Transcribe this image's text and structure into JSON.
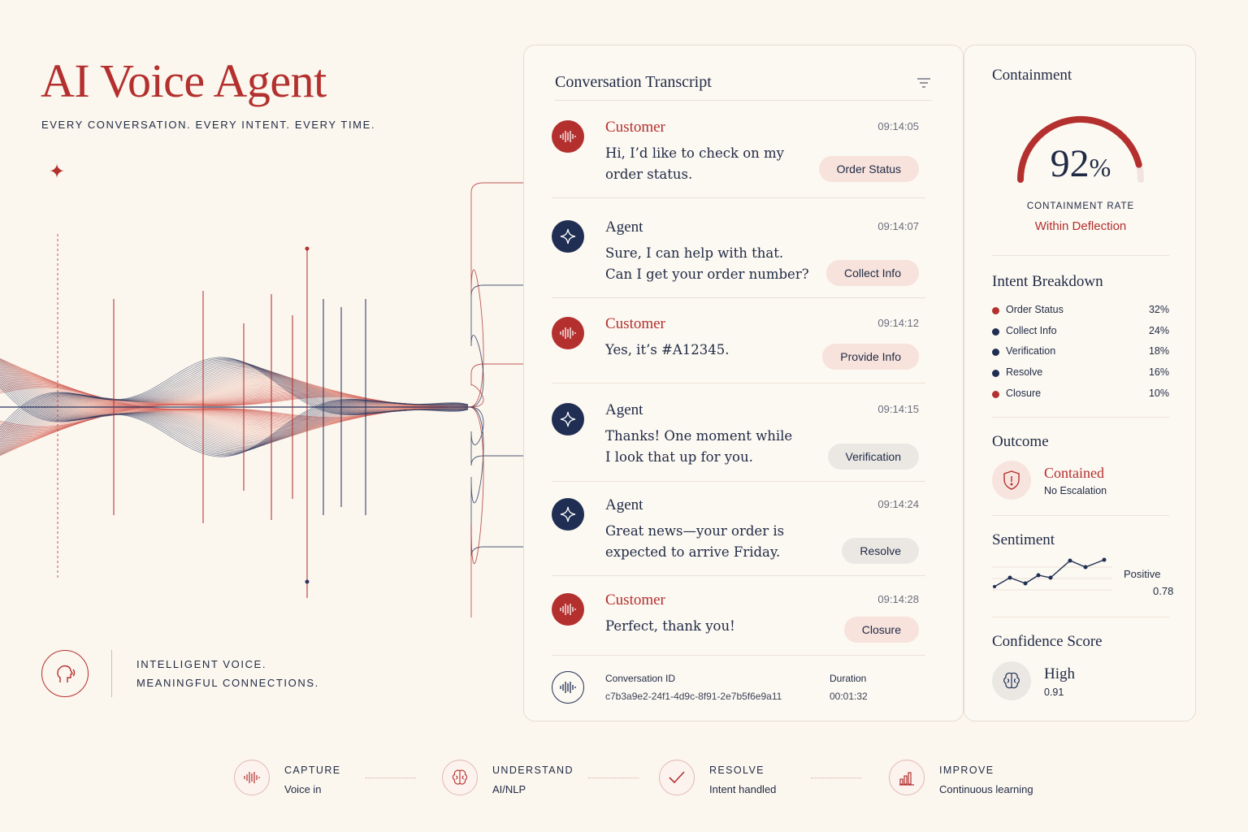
{
  "hero": {
    "title": "AI Voice Agent",
    "tagline": "EVERY CONVERSATION. EVERY INTENT. EVERY TIME.",
    "brand_line1": "INTELLIGENT VOICE.",
    "brand_line2": "MEANINGFUL CONNECTIONS."
  },
  "transcript": {
    "title": "Conversation Transcript",
    "messages": [
      {
        "speaker": "Customer",
        "time": "09:14:05",
        "line1": "Hi, I’d like to check on my",
        "line2": "order status.",
        "tag": "Order Status"
      },
      {
        "speaker": "Agent",
        "time": "09:14:07",
        "line1": "Sure, I can help with that.",
        "line2": "Can I get your order number?",
        "tag": "Collect Info"
      },
      {
        "speaker": "Customer",
        "time": "09:14:12",
        "line1": "Yes, it’s  #A12345.",
        "line2": "",
        "tag": "Provide Info"
      },
      {
        "speaker": "Agent",
        "time": "09:14:15",
        "line1": "Thanks! One moment while",
        "line2": "I look that up for you.",
        "tag": "Verification"
      },
      {
        "speaker": "Agent",
        "time": "09:14:24",
        "line1": "Great news—your order is",
        "line2": "expected to arrive Friday.",
        "tag": "Resolve"
      },
      {
        "speaker": "Customer",
        "time": "09:14:28",
        "line1": "Perfect, thank you!",
        "line2": "",
        "tag": "Closure"
      }
    ],
    "conversation_id_label": "Conversation ID",
    "conversation_id": "c7b3a9e2-24f1-4d9c-8f91-2e7b5f6e9a11",
    "duration_label": "Duration",
    "duration": "00:01:32"
  },
  "panel": {
    "containment_title": "Containment",
    "containment_value": "92",
    "containment_unit": "%",
    "containment_fraction": 0.92,
    "containment_caption": "CONTAINMENT RATE",
    "containment_status": "Within Deflection",
    "intent_title": "Intent Breakdown",
    "intents": [
      {
        "name": "Order Status",
        "pct": "32%",
        "color": "#b3302e"
      },
      {
        "name": "Collect Info",
        "pct": "24%",
        "color": "#1f2e52"
      },
      {
        "name": "Verification",
        "pct": "18%",
        "color": "#1f2e52"
      },
      {
        "name": "Resolve",
        "pct": "16%",
        "color": "#1f2e52"
      },
      {
        "name": "Closure",
        "pct": "10%",
        "color": "#b3302e"
      }
    ],
    "outcome_title": "Outcome",
    "outcome_value": "Contained",
    "outcome_detail": "No Escalation",
    "sentiment_title": "Sentiment",
    "sentiment_label": "Positive",
    "sentiment_value": "0.78",
    "confidence_title": "Confidence Score",
    "confidence_value": "High",
    "confidence_score": "0.91"
  },
  "steps": [
    {
      "title": "CAPTURE",
      "subtitle": "Voice in",
      "icon": "waveform-icon"
    },
    {
      "title": "UNDERSTAND",
      "subtitle": "AI/NLP",
      "icon": "brain-icon"
    },
    {
      "title": "RESOLVE",
      "subtitle": "Intent handled",
      "icon": "check-icon"
    },
    {
      "title": "IMPROVE",
      "subtitle": "Continuous learning",
      "icon": "bar-chart-icon"
    }
  ],
  "colors": {
    "accent_red": "#b3302e",
    "navy": "#1f2e52",
    "background": "#fbf6ee"
  }
}
